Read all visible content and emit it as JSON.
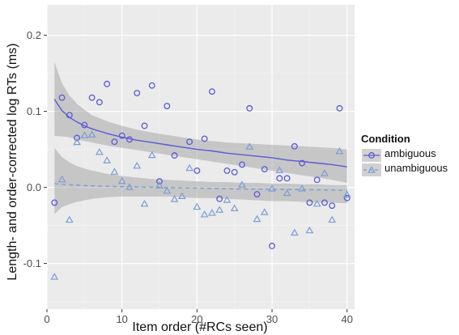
{
  "chart_data": {
    "type": "scatter",
    "title": "",
    "xlabel": "Item order (#RCs seen)",
    "ylabel": "Length- and order-corrected log RTs (ms)",
    "xlim": [
      0,
      41
    ],
    "ylim": [
      -0.16,
      0.24
    ],
    "x_ticks": [
      0,
      10,
      20,
      30,
      40
    ],
    "x_tick_labels": [
      "0",
      "10",
      "20",
      "30",
      "40"
    ],
    "y_ticks": [
      -0.1,
      0.0,
      0.1,
      0.2
    ],
    "y_tick_labels": [
      "-0.1",
      "0.0",
      "0.1",
      "0.2"
    ],
    "grid": true,
    "background": "#ebebeb",
    "legend": {
      "title": "Condition",
      "position": "right",
      "entries": [
        "ambiguous",
        "unambiguous"
      ]
    },
    "series": [
      {
        "name": "ambiguous",
        "marker": "circle",
        "color": "#5a5ad6",
        "fit_style": "solid",
        "points": [
          [
            1,
            -0.02
          ],
          [
            2,
            0.118
          ],
          [
            3,
            0.095
          ],
          [
            4,
            0.065
          ],
          [
            5,
            0.082
          ],
          [
            6,
            0.118
          ],
          [
            7,
            0.112
          ],
          [
            8,
            0.136
          ],
          [
            9,
            0.06
          ],
          [
            10,
            0.068
          ],
          [
            11,
            0.063
          ],
          [
            12,
            0.124
          ],
          [
            13,
            0.081
          ],
          [
            14,
            0.134
          ],
          [
            15,
            0.008
          ],
          [
            16,
            0.107
          ],
          [
            17,
            0.042
          ],
          [
            19,
            0.06
          ],
          [
            20,
            0.022
          ],
          [
            21,
            0.064
          ],
          [
            22,
            0.126
          ],
          [
            23,
            -0.015
          ],
          [
            24,
            0.022
          ],
          [
            25,
            0.02
          ],
          [
            26,
            0.03
          ],
          [
            27,
            0.104
          ],
          [
            28,
            -0.009
          ],
          [
            29,
            0.024
          ],
          [
            30,
            -0.077
          ],
          [
            31,
            0.012
          ],
          [
            32,
            0.012
          ],
          [
            33,
            0.054
          ],
          [
            34,
            0.032
          ],
          [
            35,
            -0.02
          ],
          [
            36,
            0.01
          ],
          [
            37,
            -0.02
          ],
          [
            38,
            -0.024
          ],
          [
            39,
            0.104
          ],
          [
            40,
            -0.014
          ]
        ],
        "fit": [
          [
            1,
            0.116
          ],
          [
            2,
            0.101
          ],
          [
            3,
            0.092
          ],
          [
            4,
            0.086
          ],
          [
            5,
            0.081
          ],
          [
            6,
            0.077
          ],
          [
            8,
            0.071
          ],
          [
            10,
            0.066
          ],
          [
            12,
            0.062
          ],
          [
            14,
            0.059
          ],
          [
            16,
            0.056
          ],
          [
            18,
            0.053
          ],
          [
            20,
            0.05
          ],
          [
            22,
            0.048
          ],
          [
            24,
            0.045
          ],
          [
            26,
            0.043
          ],
          [
            28,
            0.041
          ],
          [
            30,
            0.039
          ],
          [
            32,
            0.036
          ],
          [
            34,
            0.034
          ],
          [
            36,
            0.032
          ],
          [
            38,
            0.03
          ],
          [
            40,
            0.027
          ]
        ],
        "ci": [
          [
            1,
            0.068,
            0.165
          ],
          [
            2,
            0.067,
            0.137
          ],
          [
            3,
            0.066,
            0.121
          ],
          [
            4,
            0.063,
            0.11
          ],
          [
            5,
            0.061,
            0.102
          ],
          [
            6,
            0.059,
            0.095
          ],
          [
            8,
            0.055,
            0.087
          ],
          [
            10,
            0.052,
            0.081
          ],
          [
            12,
            0.049,
            0.076
          ],
          [
            14,
            0.046,
            0.072
          ],
          [
            16,
            0.043,
            0.069
          ],
          [
            18,
            0.04,
            0.066
          ],
          [
            20,
            0.037,
            0.063
          ],
          [
            22,
            0.034,
            0.061
          ],
          [
            24,
            0.031,
            0.059
          ],
          [
            26,
            0.028,
            0.058
          ],
          [
            28,
            0.025,
            0.057
          ],
          [
            30,
            0.022,
            0.056
          ],
          [
            32,
            0.019,
            0.055
          ],
          [
            34,
            0.016,
            0.054
          ],
          [
            36,
            0.013,
            0.053
          ],
          [
            38,
            0.01,
            0.052
          ],
          [
            40,
            0.006,
            0.05
          ]
        ]
      },
      {
        "name": "unambiguous",
        "marker": "triangle",
        "color": "#7a9ed6",
        "fit_style": "dashed",
        "points": [
          [
            1,
            -0.118
          ],
          [
            2,
            0.01
          ],
          [
            3,
            -0.043
          ],
          [
            4,
            0.059
          ],
          [
            5,
            0.068
          ],
          [
            6,
            0.069
          ],
          [
            7,
            0.046
          ],
          [
            8,
            0.035
          ],
          [
            9,
            0.02
          ],
          [
            10,
            0.008
          ],
          [
            11,
            0.0
          ],
          [
            12,
            0.028
          ],
          [
            13,
            -0.022
          ],
          [
            14,
            0.042
          ],
          [
            15,
            0.002
          ],
          [
            16,
            -0.005
          ],
          [
            17,
            -0.016
          ],
          [
            18,
            -0.012
          ],
          [
            19,
            0.025
          ],
          [
            20,
            -0.026
          ],
          [
            21,
            -0.036
          ],
          [
            22,
            -0.034
          ],
          [
            23,
            -0.03
          ],
          [
            24,
            -0.017
          ],
          [
            25,
            -0.028
          ],
          [
            26,
            0.003
          ],
          [
            27,
            0.053
          ],
          [
            28,
            -0.042
          ],
          [
            29,
            -0.033
          ],
          [
            30,
            -0.002
          ],
          [
            31,
            0.022
          ],
          [
            32,
            -0.008
          ],
          [
            33,
            -0.06
          ],
          [
            34,
            -0.002
          ],
          [
            35,
            -0.057
          ],
          [
            36,
            -0.022
          ],
          [
            37,
            0.018
          ],
          [
            38,
            -0.043
          ],
          [
            39,
            0.047
          ],
          [
            40,
            -0.01
          ]
        ],
        "fit": [
          [
            1,
            0.005
          ],
          [
            2,
            0.004
          ],
          [
            4,
            0.003
          ],
          [
            6,
            0.002
          ],
          [
            8,
            0.0015
          ],
          [
            10,
            0.001
          ],
          [
            15,
            0.0
          ],
          [
            20,
            -0.001
          ],
          [
            25,
            -0.002
          ],
          [
            30,
            -0.0025
          ],
          [
            35,
            -0.003
          ],
          [
            40,
            -0.004
          ]
        ],
        "ci": [
          [
            1,
            -0.035,
            0.052
          ],
          [
            2,
            -0.026,
            0.04
          ],
          [
            3,
            -0.022,
            0.033
          ],
          [
            4,
            -0.019,
            0.028
          ],
          [
            5,
            -0.017,
            0.025
          ],
          [
            6,
            -0.015,
            0.022
          ],
          [
            8,
            -0.013,
            0.018
          ],
          [
            10,
            -0.012,
            0.015
          ],
          [
            12,
            -0.012,
            0.013
          ],
          [
            14,
            -0.012,
            0.011
          ],
          [
            16,
            -0.012,
            0.01
          ],
          [
            18,
            -0.013,
            0.009
          ],
          [
            20,
            -0.014,
            0.008
          ],
          [
            22,
            -0.014,
            0.007
          ],
          [
            24,
            -0.015,
            0.007
          ],
          [
            26,
            -0.016,
            0.006
          ],
          [
            28,
            -0.017,
            0.006
          ],
          [
            30,
            -0.018,
            0.005
          ],
          [
            32,
            -0.018,
            0.005
          ],
          [
            34,
            -0.019,
            0.004
          ],
          [
            36,
            -0.02,
            0.004
          ],
          [
            38,
            -0.02,
            0.003
          ],
          [
            40,
            -0.021,
            0.003
          ]
        ]
      }
    ]
  }
}
